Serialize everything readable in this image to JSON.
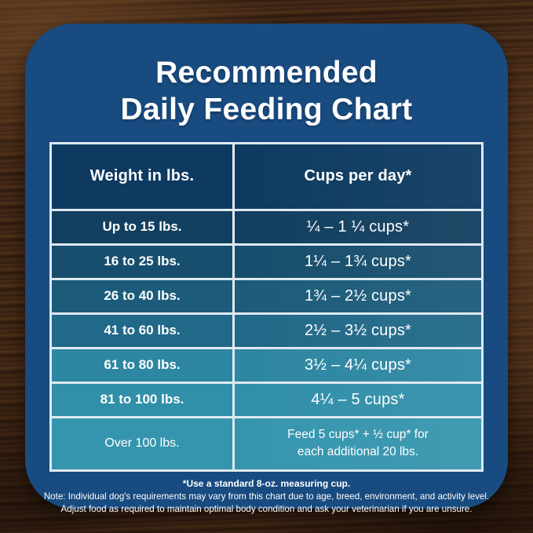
{
  "title": {
    "line1": "Recommended",
    "line2": "Daily Feeding Chart"
  },
  "table": {
    "headers": {
      "weight": "Weight in lbs.",
      "cups": "Cups per day*"
    },
    "rows": [
      {
        "weight": "Up to 15 lbs.",
        "cups": "¼ – 1 ¼ cups*",
        "color": "#123f5f"
      },
      {
        "weight": "16 to 25 lbs.",
        "cups": "1¼ – 1¾  cups*",
        "color": "#174e6d"
      },
      {
        "weight": "26 to 40 lbs.",
        "cups": "1¾ – 2½ cups*",
        "color": "#1c5b7a"
      },
      {
        "weight": "41 to 60 lbs.",
        "cups": "2½ – 3½ cups*",
        "color": "#216988"
      },
      {
        "weight": "61 to 80 lbs.",
        "cups": "3½ – 4¼ cups*",
        "color": "#2d86a2"
      },
      {
        "weight": "81 to 100 lbs.",
        "cups": "4¼ – 5 cups*",
        "color": "#318fa9"
      },
      {
        "weight": "Over 100 lbs.",
        "cups_line1": "Feed 5 cups* + ½ cup* for",
        "cups_line2": "each additional 20 lbs.",
        "color": "#3695ae"
      }
    ]
  },
  "footnotes": {
    "line1": "*Use a standard 8-oz. measuring cup.",
    "line2": "Note: Individual dog's requirements may vary from this chart due to age, breed, environment, and activity level.",
    "line3": "Adjust food as required to maintain optimal body condition and ask your veterinarian if you are unsure."
  },
  "colors": {
    "panel": "#184b80",
    "header_cell": "#0e3a61",
    "table_border": "#dfe9f1",
    "text": "#ffffff"
  },
  "chart_data": {
    "type": "table",
    "title": "Recommended Daily Feeding Chart",
    "columns": [
      "Weight in lbs.",
      "Cups per day*"
    ],
    "rows": [
      [
        "Up to 15 lbs.",
        "¼ – 1 ¼ cups*"
      ],
      [
        "16 to 25 lbs.",
        "1¼ – 1¾ cups*"
      ],
      [
        "26 to 40 lbs.",
        "1¾ – 2½ cups*"
      ],
      [
        "41 to 60 lbs.",
        "2½ – 3½ cups*"
      ],
      [
        "61 to 80 lbs.",
        "3½ – 4¼ cups*"
      ],
      [
        "81 to 100 lbs.",
        "4¼ – 5 cups*"
      ],
      [
        "Over 100 lbs.",
        "Feed 5 cups* + ½ cup* for each additional 20 lbs."
      ]
    ],
    "notes": [
      "*Use a standard 8-oz. measuring cup.",
      "Note: Individual dog's requirements may vary from this chart due to age, breed, environment, and activity level.",
      "Adjust food as required to maintain optimal body condition and ask your veterinarian if you are unsure."
    ]
  }
}
